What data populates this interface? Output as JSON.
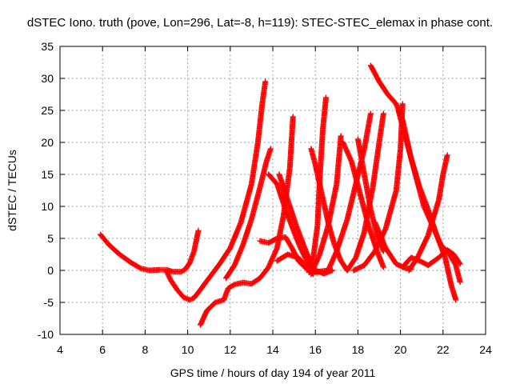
{
  "chart_data": {
    "type": "scatter",
    "title": "dSTEC Iono. truth (pove, Lon=296, Lat=-8, h=119): STEC-STEC_elemax in phase cont.",
    "xlabel": "GPS time / hours of day 194 of year 2011",
    "ylabel": "dSTEC  / TECUs",
    "xlim": [
      4,
      24
    ],
    "ylim": [
      -10,
      35
    ],
    "xticks": [
      "4",
      "6",
      "8",
      "10",
      "12",
      "14",
      "16",
      "18",
      "20",
      "22",
      "24"
    ],
    "yticks": [
      "-10",
      "-5",
      "0",
      "5",
      "10",
      "15",
      "20",
      "25",
      "30",
      "35"
    ],
    "grid": true,
    "marker": "+",
    "color": "#ff0000",
    "series": [
      {
        "values": [
          [
            5.9,
            5.6
          ],
          [
            6.3,
            4.0
          ],
          [
            6.8,
            2.5
          ],
          [
            7.3,
            1.3
          ],
          [
            7.8,
            0.3
          ],
          [
            8.2,
            0.0
          ],
          [
            8.7,
            0.1
          ],
          [
            9.0,
            0.1
          ],
          [
            9.3,
            -0.2
          ],
          [
            9.7,
            -0.2
          ],
          [
            9.9,
            0.2
          ],
          [
            10.1,
            1.2
          ],
          [
            10.3,
            3.0
          ],
          [
            10.5,
            6.2
          ]
        ]
      },
      {
        "values": [
          [
            9.0,
            -0.1
          ],
          [
            9.2,
            -1.5
          ],
          [
            9.5,
            -3.0
          ],
          [
            9.8,
            -4.2
          ],
          [
            10.1,
            -4.6
          ],
          [
            10.3,
            -4.3
          ],
          [
            10.6,
            -3.0
          ],
          [
            11.0,
            -1.2
          ],
          [
            11.5,
            1.0
          ],
          [
            12.0,
            3.5
          ],
          [
            12.5,
            7.5
          ],
          [
            13.0,
            13.5
          ],
          [
            13.3,
            20.0
          ],
          [
            13.5,
            26.0
          ],
          [
            13.65,
            29.5
          ]
        ]
      },
      {
        "values": [
          [
            10.6,
            -8.5
          ],
          [
            10.9,
            -6.3
          ],
          [
            11.3,
            -5.0
          ],
          [
            11.7,
            -4.6
          ],
          [
            11.9,
            -2.8
          ],
          [
            12.2,
            -2.2
          ],
          [
            12.6,
            -1.9
          ],
          [
            13.0,
            -2.1
          ],
          [
            13.4,
            -1.2
          ],
          [
            13.8,
            0.5
          ],
          [
            14.2,
            3.5
          ],
          [
            14.5,
            8.5
          ],
          [
            14.8,
            16.0
          ],
          [
            14.95,
            24.0
          ]
        ]
      },
      {
        "values": [
          [
            11.8,
            -1.2
          ],
          [
            12.2,
            0.8
          ],
          [
            12.6,
            4.0
          ],
          [
            13.0,
            8.0
          ],
          [
            13.4,
            13.0
          ],
          [
            13.7,
            17.0
          ],
          [
            13.9,
            19.0
          ]
        ]
      },
      {
        "values": [
          [
            13.4,
            4.6
          ],
          [
            13.8,
            4.3
          ],
          [
            14.2,
            5.0
          ],
          [
            14.6,
            5.2
          ],
          [
            14.9,
            3.5
          ],
          [
            15.2,
            1.5
          ],
          [
            15.6,
            0.2
          ],
          [
            16.1,
            -0.2
          ],
          [
            16.6,
            0.0
          ]
        ]
      },
      {
        "values": [
          [
            13.8,
            15.0
          ],
          [
            14.2,
            13.5
          ],
          [
            14.6,
            9.5
          ],
          [
            15.0,
            6.0
          ],
          [
            15.3,
            3.5
          ],
          [
            15.6,
            1.5
          ],
          [
            16.0,
            0.0
          ],
          [
            16.4,
            -0.5
          ],
          [
            16.8,
            0.0
          ]
        ]
      },
      {
        "values": [
          [
            14.3,
            15.0
          ],
          [
            14.7,
            11.0
          ],
          [
            15.1,
            7.0
          ],
          [
            15.5,
            3.5
          ],
          [
            15.8,
            1.0
          ],
          [
            16.1,
            -0.4
          ]
        ]
      },
      {
        "values": [
          [
            14.2,
            1.5
          ],
          [
            14.7,
            2.5
          ],
          [
            15.2,
            2.0
          ],
          [
            15.6,
            0.5
          ],
          [
            15.9,
            -0.6
          ]
        ]
      },
      {
        "values": [
          [
            15.8,
            -0.6
          ],
          [
            16.2,
            2.5
          ],
          [
            16.6,
            7.0
          ],
          [
            17.0,
            13.5
          ],
          [
            17.2,
            21.0
          ]
        ]
      },
      {
        "values": [
          [
            15.7,
            -0.3
          ],
          [
            15.9,
            2.0
          ],
          [
            16.1,
            7.0
          ],
          [
            16.2,
            14.0
          ],
          [
            16.35,
            22.0
          ],
          [
            16.5,
            27.0
          ]
        ]
      },
      {
        "values": [
          [
            15.8,
            19.0
          ],
          [
            16.0,
            16.5
          ],
          [
            16.3,
            12.0
          ],
          [
            16.6,
            7.5
          ],
          [
            16.9,
            4.0
          ],
          [
            17.2,
            1.5
          ],
          [
            17.5,
            0.0
          ]
        ]
      },
      {
        "values": [
          [
            16.6,
            0.0
          ],
          [
            17.0,
            3.0
          ],
          [
            17.5,
            8.0
          ],
          [
            17.9,
            13.5
          ],
          [
            18.3,
            19.0
          ],
          [
            18.6,
            24.5
          ]
        ]
      },
      {
        "values": [
          [
            17.3,
            20.0
          ],
          [
            17.7,
            17.0
          ],
          [
            18.1,
            12.0
          ],
          [
            18.5,
            7.0
          ],
          [
            18.9,
            3.0
          ],
          [
            19.2,
            0.5
          ]
        ]
      },
      {
        "values": [
          [
            17.5,
            0.0
          ],
          [
            17.9,
            2.0
          ],
          [
            18.3,
            6.0
          ],
          [
            18.7,
            13.0
          ],
          [
            19.0,
            20.0
          ],
          [
            19.2,
            24.5
          ]
        ]
      },
      {
        "values": [
          [
            18.0,
            20.5
          ],
          [
            18.3,
            15.0
          ],
          [
            18.6,
            9.5
          ],
          [
            18.9,
            5.5
          ],
          [
            19.2,
            3.0
          ]
        ]
      },
      {
        "values": [
          [
            18.6,
            32.0
          ],
          [
            19.0,
            29.5
          ],
          [
            19.4,
            27.5
          ],
          [
            19.8,
            26.0
          ],
          [
            20.1,
            23.5
          ],
          [
            20.5,
            17.5
          ],
          [
            20.9,
            13.0
          ],
          [
            21.3,
            9.5
          ],
          [
            21.7,
            5.5
          ],
          [
            22.1,
            2.0
          ],
          [
            22.4,
            -2.5
          ],
          [
            22.6,
            -4.6
          ]
        ]
      },
      {
        "values": [
          [
            17.8,
            0.0
          ],
          [
            18.3,
            0.8
          ],
          [
            18.8,
            3.0
          ],
          [
            19.3,
            6.5
          ],
          [
            19.8,
            12.5
          ],
          [
            20.0,
            19.0
          ],
          [
            20.1,
            26.0
          ]
        ]
      },
      {
        "values": [
          [
            18.8,
            7.5
          ],
          [
            19.3,
            3.5
          ],
          [
            19.8,
            1.0
          ],
          [
            20.2,
            0.4
          ],
          [
            20.5,
            0.2
          ]
        ]
      },
      {
        "values": [
          [
            19.9,
            25.0
          ],
          [
            20.3,
            20.0
          ],
          [
            20.7,
            15.0
          ],
          [
            21.1,
            10.0
          ],
          [
            21.5,
            7.0
          ],
          [
            21.9,
            4.0
          ],
          [
            22.3,
            2.5
          ],
          [
            22.6,
            0.8
          ],
          [
            22.8,
            -1.8
          ]
        ]
      },
      {
        "values": [
          [
            20.4,
            0.0
          ],
          [
            20.8,
            2.0
          ],
          [
            21.3,
            5.5
          ],
          [
            21.8,
            11.0
          ],
          [
            22.0,
            15.0
          ],
          [
            22.2,
            18.0
          ]
        ]
      },
      {
        "values": [
          [
            20.1,
            0.5
          ],
          [
            20.5,
            2.0
          ],
          [
            20.9,
            1.5
          ],
          [
            21.3,
            0.8
          ],
          [
            21.8,
            2.0
          ],
          [
            22.2,
            3.2
          ],
          [
            22.5,
            2.5
          ],
          [
            22.8,
            1.0
          ]
        ]
      }
    ]
  }
}
